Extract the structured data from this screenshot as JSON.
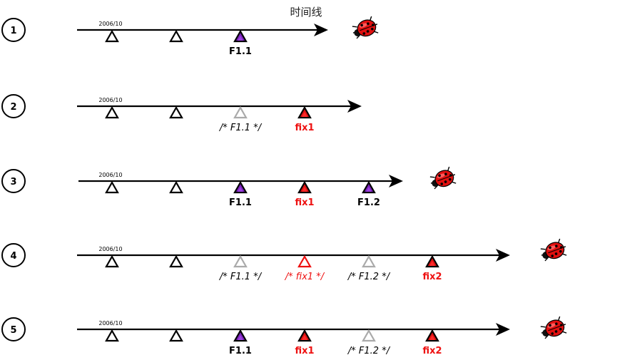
{
  "title": "时间线",
  "colors": {
    "axis": "#000000",
    "purple": "#7a22b8",
    "red": "#dd1111",
    "gray": "#aaaaaa",
    "label_red": "#ee1111",
    "label_black": "#000000",
    "bug_body": "#e01010"
  },
  "rows": [
    {
      "step": "1",
      "date": "2006/10",
      "bug": true,
      "marks": [
        {
          "style": "black-open",
          "label": ""
        },
        {
          "style": "black-open",
          "label": ""
        },
        {
          "style": "purple",
          "label": "F1.1",
          "label_style": "bold-black"
        }
      ]
    },
    {
      "step": "2",
      "date": "2006/10",
      "bug": false,
      "marks": [
        {
          "style": "black-open",
          "label": ""
        },
        {
          "style": "black-open",
          "label": ""
        },
        {
          "style": "gray",
          "label": "/* F1.1 */",
          "label_style": "italic-black"
        },
        {
          "style": "red",
          "label": "fix1",
          "label_style": "bold-red"
        }
      ]
    },
    {
      "step": "3",
      "date": "2006/10",
      "bug": true,
      "marks": [
        {
          "style": "black-open",
          "label": ""
        },
        {
          "style": "black-open",
          "label": ""
        },
        {
          "style": "purple",
          "label": "F1.1",
          "label_style": "bold-black"
        },
        {
          "style": "red",
          "label": "fix1",
          "label_style": "bold-red"
        },
        {
          "style": "purple",
          "label": "F1.2",
          "label_style": "bold-black"
        }
      ]
    },
    {
      "step": "4",
      "date": "2006/10",
      "bug": true,
      "marks": [
        {
          "style": "black-open",
          "label": ""
        },
        {
          "style": "black-open",
          "label": ""
        },
        {
          "style": "gray",
          "label": "/* F1.1 */",
          "label_style": "italic-black"
        },
        {
          "style": "red-open",
          "label": "/* fix1 */",
          "label_style": "italic-red"
        },
        {
          "style": "gray",
          "label": "/* F1.2 */",
          "label_style": "italic-black"
        },
        {
          "style": "red",
          "label": "fix2",
          "label_style": "bold-red"
        }
      ]
    },
    {
      "step": "5",
      "date": "2006/10",
      "bug": true,
      "marks": [
        {
          "style": "black-open",
          "label": ""
        },
        {
          "style": "black-open",
          "label": ""
        },
        {
          "style": "purple",
          "label": "F1.1",
          "label_style": "bold-black"
        },
        {
          "style": "red",
          "label": "fix1",
          "label_style": "bold-red"
        },
        {
          "style": "gray",
          "label": "/* F1.2 */",
          "label_style": "italic-black"
        },
        {
          "style": "red",
          "label": "fix2",
          "label_style": "bold-red"
        }
      ]
    }
  ]
}
